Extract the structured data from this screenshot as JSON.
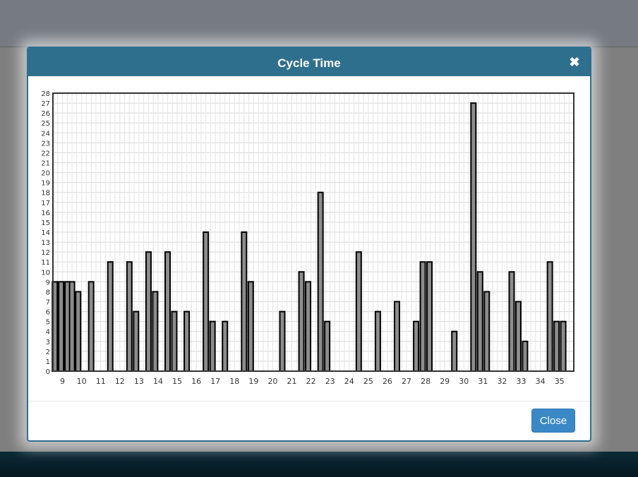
{
  "modal": {
    "title": "Cycle Time",
    "close_icon": "close-icon",
    "close_button_label": "Close"
  },
  "colors": {
    "header": "#2f6f8e",
    "bar_fill": "#8c8c8c",
    "bar_stroke": "#000000",
    "grid": "#d8d8d8",
    "button": "#3b88c7"
  },
  "chart_data": {
    "type": "bar",
    "ylim": [
      0,
      28
    ],
    "xlim": [
      8.5,
      35.75
    ],
    "grid": true,
    "x_ticks": [
      9,
      10,
      11,
      12,
      13,
      14,
      15,
      16,
      17,
      18,
      19,
      20,
      21,
      22,
      23,
      24,
      25,
      26,
      27,
      28,
      29,
      30,
      31,
      32,
      33,
      34,
      35
    ],
    "y_ticks": [
      0,
      1,
      2,
      3,
      4,
      5,
      6,
      7,
      8,
      9,
      10,
      11,
      12,
      13,
      14,
      15,
      16,
      17,
      18,
      19,
      20,
      21,
      22,
      23,
      24,
      25,
      26,
      27,
      28
    ],
    "bars": [
      {
        "x": 8.6,
        "y": 9
      },
      {
        "x": 8.93,
        "y": 9
      },
      {
        "x": 9.26,
        "y": 9
      },
      {
        "x": 9.5,
        "y": 9
      },
      {
        "x": 9.82,
        "y": 8
      },
      {
        "x": 10.5,
        "y": 9
      },
      {
        "x": 11.5,
        "y": 11
      },
      {
        "x": 12.5,
        "y": 11
      },
      {
        "x": 12.85,
        "y": 6
      },
      {
        "x": 13.5,
        "y": 12
      },
      {
        "x": 13.85,
        "y": 8
      },
      {
        "x": 14.5,
        "y": 12
      },
      {
        "x": 14.85,
        "y": 6
      },
      {
        "x": 15.5,
        "y": 6
      },
      {
        "x": 16.5,
        "y": 14
      },
      {
        "x": 16.85,
        "y": 5
      },
      {
        "x": 17.5,
        "y": 5
      },
      {
        "x": 18.5,
        "y": 14
      },
      {
        "x": 18.85,
        "y": 9
      },
      {
        "x": 20.5,
        "y": 6
      },
      {
        "x": 21.5,
        "y": 10
      },
      {
        "x": 21.85,
        "y": 9
      },
      {
        "x": 22.5,
        "y": 18
      },
      {
        "x": 22.85,
        "y": 5
      },
      {
        "x": 24.5,
        "y": 12
      },
      {
        "x": 25.5,
        "y": 6
      },
      {
        "x": 26.5,
        "y": 7
      },
      {
        "x": 27.5,
        "y": 5
      },
      {
        "x": 27.85,
        "y": 11
      },
      {
        "x": 28.2,
        "y": 11
      },
      {
        "x": 29.5,
        "y": 4
      },
      {
        "x": 30.5,
        "y": 27
      },
      {
        "x": 30.85,
        "y": 10
      },
      {
        "x": 31.2,
        "y": 8
      },
      {
        "x": 32.5,
        "y": 10
      },
      {
        "x": 32.85,
        "y": 7
      },
      {
        "x": 33.2,
        "y": 3
      },
      {
        "x": 34.5,
        "y": 11
      },
      {
        "x": 34.85,
        "y": 5
      },
      {
        "x": 35.2,
        "y": 5
      }
    ]
  }
}
